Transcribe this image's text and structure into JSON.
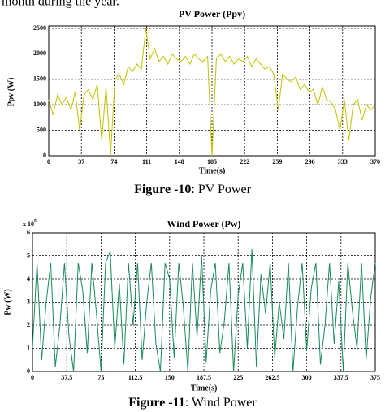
{
  "document": {
    "intro": "month during the year."
  },
  "chart_data": [
    {
      "type": "line",
      "title": "PV Power (Ppv)",
      "xlabel": "Time(s)",
      "ylabel": "Ppv (W)",
      "caption_label": "Figure -10",
      "caption_text": ": PV Power",
      "xlim": [
        0,
        370
      ],
      "ylim": [
        0,
        2500
      ],
      "xticks": [
        0,
        37,
        74,
        111,
        148,
        185,
        222,
        259,
        296,
        333,
        370
      ],
      "yticks": [
        0,
        500,
        1000,
        1500,
        2000,
        2500
      ],
      "grid": true,
      "x": [
        0,
        5,
        10,
        15,
        20,
        25,
        30,
        35,
        40,
        45,
        50,
        55,
        60,
        65,
        70,
        75,
        80,
        85,
        90,
        95,
        100,
        105,
        110,
        115,
        120,
        125,
        130,
        135,
        140,
        145,
        150,
        155,
        160,
        165,
        170,
        175,
        180,
        185,
        190,
        195,
        200,
        205,
        210,
        215,
        220,
        225,
        230,
        235,
        240,
        245,
        250,
        255,
        260,
        265,
        270,
        275,
        280,
        285,
        290,
        295,
        300,
        305,
        310,
        315,
        320,
        325,
        330,
        335,
        340,
        345,
        350,
        355,
        360,
        365,
        370
      ],
      "series": [
        {
          "name": "Ppv",
          "color": "#c2c200",
          "values": [
            1100,
            800,
            1200,
            1000,
            1150,
            900,
            1250,
            500,
            1200,
            1300,
            1100,
            1400,
            300,
            1350,
            0,
            1500,
            1600,
            1400,
            1750,
            1650,
            1800,
            1700,
            2500,
            1900,
            2100,
            1850,
            1950,
            1800,
            2000,
            1900,
            1850,
            1950,
            1800,
            2000,
            1900,
            1850,
            1950,
            0,
            1900,
            2000,
            1850,
            1950,
            1800,
            1900,
            1850,
            1950,
            1750,
            1900,
            1800,
            1700,
            1750,
            1600,
            900,
            1600,
            1500,
            1450,
            1550,
            1300,
            1400,
            1250,
            1300,
            1000,
            1350,
            1100,
            1050,
            900,
            500,
            1100,
            300,
            1000,
            1100,
            700,
            1000,
            900,
            1000
          ]
        }
      ]
    },
    {
      "type": "line",
      "title": "Wind Power (Pw)",
      "xlabel": "Time(s)",
      "ylabel": "Pw (W)",
      "y_multiplier": "x 10",
      "y_multiplier_exp": "5",
      "caption_label": "Figure -11",
      "caption_text": ": Wind Power",
      "xlim": [
        0,
        375
      ],
      "ylim": [
        0,
        6
      ],
      "xticks": [
        0,
        37.5,
        75,
        112.5,
        150,
        187.5,
        225,
        262.5,
        300,
        337.5,
        375
      ],
      "yticks": [
        0,
        1,
        2,
        3,
        4,
        5,
        6
      ],
      "grid": true,
      "x": [
        0,
        5,
        10,
        15,
        20,
        25,
        30,
        35,
        40,
        45,
        50,
        55,
        60,
        65,
        70,
        75,
        80,
        85,
        90,
        95,
        100,
        105,
        110,
        115,
        120,
        125,
        130,
        135,
        140,
        145,
        150,
        155,
        160,
        165,
        170,
        175,
        180,
        185,
        190,
        195,
        200,
        205,
        210,
        215,
        220,
        225,
        230,
        235,
        240,
        245,
        250,
        255,
        260,
        265,
        270,
        275,
        280,
        285,
        290,
        295,
        300,
        305,
        310,
        315,
        320,
        325,
        330,
        335,
        340,
        345,
        350,
        355,
        360,
        365,
        370,
        375
      ],
      "series": [
        {
          "name": "Pw",
          "color": "#1a8a5a",
          "values": [
            1,
            4.7,
            0.5,
            3,
            4.7,
            0.2,
            2,
            4.7,
            1.5,
            0,
            4.7,
            3.5,
            0.8,
            4.7,
            2.5,
            0,
            4.7,
            5.2,
            1,
            3.8,
            0.3,
            4.7,
            2,
            4.7,
            0.5,
            3,
            4.7,
            1.2,
            0,
            4.7,
            4,
            0.6,
            4.7,
            2.8,
            0,
            4.7,
            1.5,
            5,
            0.4,
            3.5,
            4.7,
            0.8,
            2.2,
            4.7,
            0,
            3.3,
            4.7,
            1,
            5.3,
            0.2,
            4.2,
            2.5,
            4.7,
            0.6,
            3,
            1.4,
            4.7,
            0,
            2.8,
            4.7,
            0.9,
            3.6,
            4.7,
            0.3,
            2,
            4.7,
            1.2,
            3.9,
            0,
            4.7,
            2.6,
            1,
            4.7,
            0.5,
            3.2,
            4.7
          ]
        }
      ]
    }
  ]
}
